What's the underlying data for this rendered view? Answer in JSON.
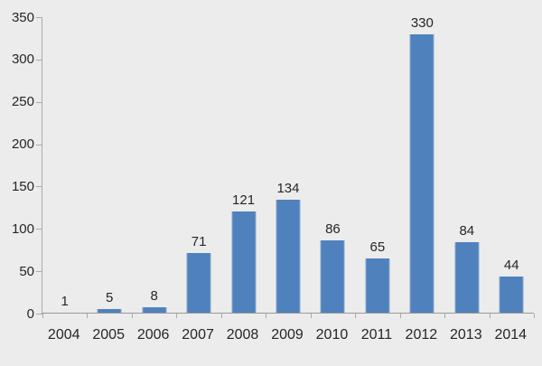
{
  "chart_data": {
    "type": "bar",
    "title": "",
    "xlabel": "",
    "ylabel": "",
    "categories": [
      "2004",
      "2005",
      "2006",
      "2007",
      "2008",
      "2009",
      "2010",
      "2011",
      "2012",
      "2013",
      "2014"
    ],
    "values": [
      1,
      5,
      8,
      71,
      121,
      134,
      86,
      65,
      330,
      84,
      44
    ],
    "data_labels_shown": true,
    "ylim": [
      0,
      350
    ],
    "yticks": [
      0,
      50,
      100,
      150,
      200,
      250,
      300,
      350
    ],
    "grid": false,
    "legend": null,
    "colors": {
      "bar_fill": "#4F81BD",
      "bar_edge_highlight": "#86A7D0",
      "background": "#ECECEC",
      "x_axis_line": "#9B9B9B",
      "y_axis_line": "#ABABAB",
      "tick_marks": "#ABABAB",
      "text": "#262626"
    }
  }
}
